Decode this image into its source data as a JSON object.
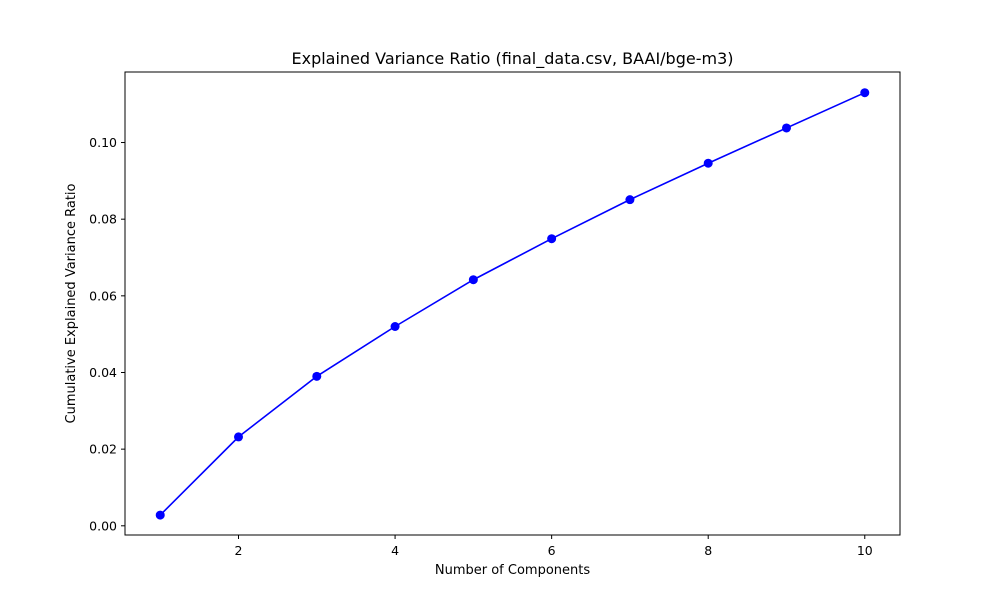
{
  "chart_data": {
    "type": "line",
    "title": "Explained Variance Ratio (final_data.csv, BAAI/bge-m3)",
    "xlabel": "Number of Components",
    "ylabel": "Cumulative Explained Variance Ratio",
    "xlim": [
      0.55,
      10.45
    ],
    "ylim": [
      -0.0024,
      0.1184
    ],
    "x_ticks": [
      2,
      4,
      6,
      8,
      10
    ],
    "x_tick_labels": [
      "2",
      "4",
      "6",
      "8",
      "10"
    ],
    "y_ticks": [
      0.0,
      0.02,
      0.04,
      0.06,
      0.08,
      0.1
    ],
    "y_tick_labels": [
      "0.00",
      "0.02",
      "0.04",
      "0.06",
      "0.08",
      "0.10"
    ],
    "grid": false,
    "series": [
      {
        "color": "#0000ff",
        "marker": "circle",
        "x": [
          1,
          2,
          3,
          4,
          5,
          6,
          7,
          8,
          9,
          10
        ],
        "y": [
          0.0028,
          0.0232,
          0.039,
          0.052,
          0.0642,
          0.0749,
          0.0851,
          0.0946,
          0.1038,
          0.113
        ]
      }
    ]
  }
}
